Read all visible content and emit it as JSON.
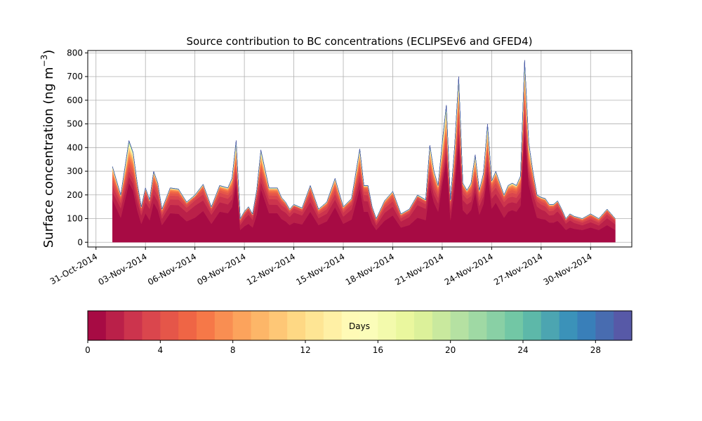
{
  "chart_data": {
    "type": "area",
    "stacked": true,
    "title": "Source contribution to BC concentrations (ECLIPSEv6 and GFED4)",
    "ylabel_main": "Surface concentration (ng m",
    "ylabel_sup": "−3",
    "ylabel_tail": ")",
    "ylim": [
      -20,
      810
    ],
    "xlim_days": [
      -0.5,
      32.5
    ],
    "yticks": [
      "0",
      "100",
      "200",
      "300",
      "400",
      "500",
      "600",
      "700",
      "800"
    ],
    "xticks": [
      "31-Oct-2014",
      "03-Nov-2014",
      "06-Nov-2014",
      "09-Nov-2014",
      "12-Nov-2014",
      "15-Nov-2014",
      "18-Nov-2014",
      "21-Nov-2014",
      "24-Nov-2014",
      "27-Nov-2014",
      "30-Nov-2014"
    ],
    "grid": true,
    "x_dates": [
      "2014-11-01",
      "2014-11-01 12:00",
      "2014-11-02",
      "2014-11-02 06:00",
      "2014-11-02 12:00",
      "2014-11-02 18:00",
      "2014-11-03",
      "2014-11-03 06:00",
      "2014-11-03 12:00",
      "2014-11-03 18:00",
      "2014-11-04",
      "2014-11-04 12:00",
      "2014-11-05",
      "2014-11-05 12:00",
      "2014-11-06",
      "2014-11-06 12:00",
      "2014-11-07",
      "2014-11-07 12:00",
      "2014-11-08",
      "2014-11-08 06:00",
      "2014-11-08 12:00",
      "2014-11-08 18:00",
      "2014-11-09",
      "2014-11-09 06:00",
      "2014-11-09 12:00",
      "2014-11-09 18:00",
      "2014-11-10",
      "2014-11-10 12:00",
      "2014-11-11",
      "2014-11-11 06:00",
      "2014-11-11 12:00",
      "2014-11-11 18:00",
      "2014-11-12",
      "2014-11-12 12:00",
      "2014-11-13",
      "2014-11-13 12:00",
      "2014-11-14",
      "2014-11-14 12:00",
      "2014-11-15",
      "2014-11-15 12:00",
      "2014-11-16",
      "2014-11-16 06:00",
      "2014-11-16 12:00",
      "2014-11-16 18:00",
      "2014-11-17",
      "2014-11-17 12:00",
      "2014-11-18",
      "2014-11-18 12:00",
      "2014-11-19",
      "2014-11-19 12:00",
      "2014-11-20",
      "2014-11-20 06:00",
      "2014-11-20 12:00",
      "2014-11-20 18:00",
      "2014-11-21",
      "2014-11-21 06:00",
      "2014-11-21 12:00",
      "2014-11-21 18:00",
      "2014-11-22",
      "2014-11-22 06:00",
      "2014-11-22 12:00",
      "2014-11-22 18:00",
      "2014-11-23",
      "2014-11-23 06:00",
      "2014-11-23 12:00",
      "2014-11-23 18:00",
      "2014-11-24",
      "2014-11-24 06:00",
      "2014-11-24 12:00",
      "2014-11-24 18:00",
      "2014-11-25",
      "2014-11-25 06:00",
      "2014-11-25 12:00",
      "2014-11-25 18:00",
      "2014-11-26",
      "2014-11-26 06:00",
      "2014-11-26 12:00",
      "2014-11-26 18:00",
      "2014-11-27",
      "2014-11-27 06:00",
      "2014-11-27 12:00",
      "2014-11-27 18:00",
      "2014-11-28",
      "2014-11-28 06:00",
      "2014-11-28 12:00",
      "2014-11-28 18:00",
      "2014-11-29",
      "2014-11-29 12:00",
      "2014-11-30",
      "2014-11-30 12:00",
      "2014-12-01",
      "2014-12-01 12:00"
    ],
    "x_days": [
      1.0,
      1.5,
      2.0,
      2.25,
      2.5,
      2.75,
      3.0,
      3.25,
      3.5,
      3.75,
      4.0,
      4.5,
      5.0,
      5.5,
      6.0,
      6.5,
      7.0,
      7.5,
      8.0,
      8.25,
      8.5,
      8.75,
      9.0,
      9.25,
      9.5,
      9.75,
      10.0,
      10.5,
      11.0,
      11.25,
      11.5,
      11.75,
      12.0,
      12.5,
      13.0,
      13.5,
      14.0,
      14.5,
      15.0,
      15.5,
      16.0,
      16.25,
      16.5,
      16.75,
      17.0,
      17.5,
      18.0,
      18.5,
      19.0,
      19.5,
      20.0,
      20.25,
      20.5,
      20.75,
      21.0,
      21.25,
      21.5,
      21.75,
      22.0,
      22.25,
      22.5,
      22.75,
      23.0,
      23.25,
      23.5,
      23.75,
      24.0,
      24.25,
      24.5,
      24.75,
      25.0,
      25.25,
      25.5,
      25.75,
      26.0,
      26.25,
      26.5,
      26.75,
      27.0,
      27.25,
      27.5,
      27.75,
      28.0,
      28.25,
      28.5,
      28.75,
      29.0,
      29.5,
      30.0,
      30.5,
      31.0,
      31.5
    ],
    "total": [
      320,
      200,
      430,
      380,
      250,
      150,
      230,
      180,
      300,
      250,
      140,
      230,
      225,
      170,
      200,
      245,
      150,
      240,
      230,
      270,
      430,
      100,
      130,
      150,
      120,
      220,
      390,
      230,
      230,
      190,
      170,
      140,
      160,
      145,
      240,
      140,
      170,
      270,
      150,
      185,
      395,
      240,
      240,
      150,
      100,
      175,
      215,
      120,
      140,
      200,
      180,
      410,
      300,
      240,
      420,
      580,
      180,
      400,
      700,
      250,
      220,
      250,
      370,
      220,
      290,
      500,
      260,
      300,
      250,
      200,
      240,
      250,
      240,
      280,
      770,
      420,
      300,
      200,
      190,
      185,
      160,
      160,
      175,
      140,
      100,
      120,
      110,
      100,
      120,
      100,
      140,
      100
    ],
    "colorbar_label": "Days",
    "colorbar_range": [
      0,
      30
    ],
    "colorbar_ticks": [
      "0",
      "4",
      "8",
      "12",
      "16",
      "20",
      "24",
      "28"
    ]
  }
}
